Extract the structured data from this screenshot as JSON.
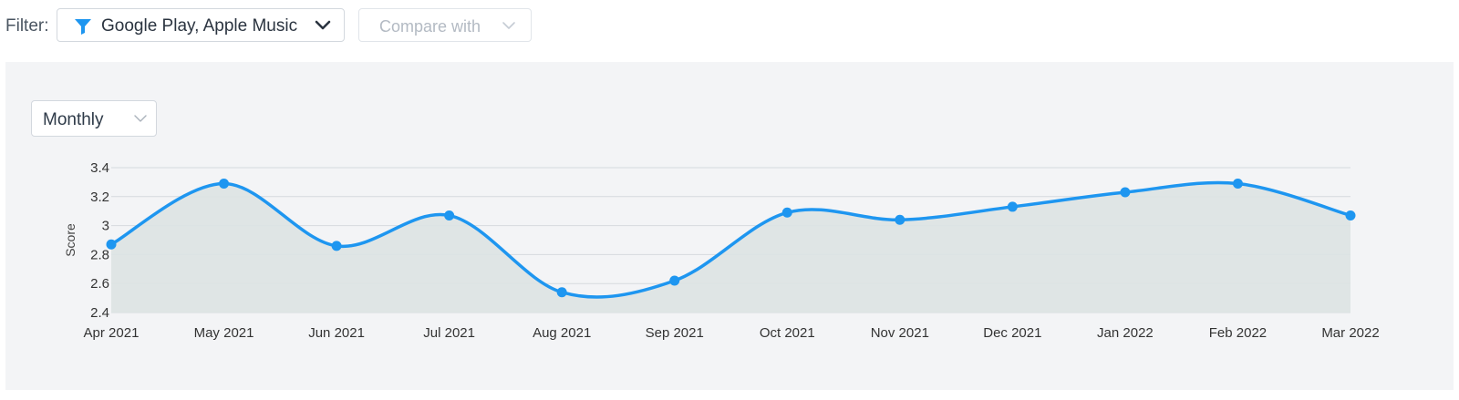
{
  "filter": {
    "label": "Filter:",
    "selected": "Google Play, Apple Music",
    "compare_placeholder": "Compare with"
  },
  "period": {
    "selected": "Monthly"
  },
  "colors": {
    "line": "#1e96f0",
    "area": "#dde3e3",
    "grid": "#d6dade",
    "panel": "#f3f4f6"
  },
  "chart_data": {
    "type": "area",
    "categories": [
      "Apr 2021",
      "May 2021",
      "Jun 2021",
      "Jul 2021",
      "Aug 2021",
      "Sep 2021",
      "Oct 2021",
      "Nov 2021",
      "Dec 2021",
      "Jan 2022",
      "Feb 2022",
      "Mar 2022"
    ],
    "series": [
      {
        "values": [
          2.87,
          3.29,
          2.86,
          3.07,
          2.54,
          2.62,
          3.09,
          3.04,
          3.13,
          3.23,
          3.29,
          3.07
        ]
      }
    ],
    "ylabel": "Score",
    "xlabel": "",
    "ylim": [
      2.4,
      3.4
    ],
    "yticks": [
      2.4,
      2.6,
      2.8,
      3,
      3.2,
      3.4
    ],
    "ytick_labels": [
      "2.4",
      "2.6",
      "2.8",
      "3",
      "3.2",
      "3.4"
    ],
    "smooth": true,
    "grid": true
  }
}
